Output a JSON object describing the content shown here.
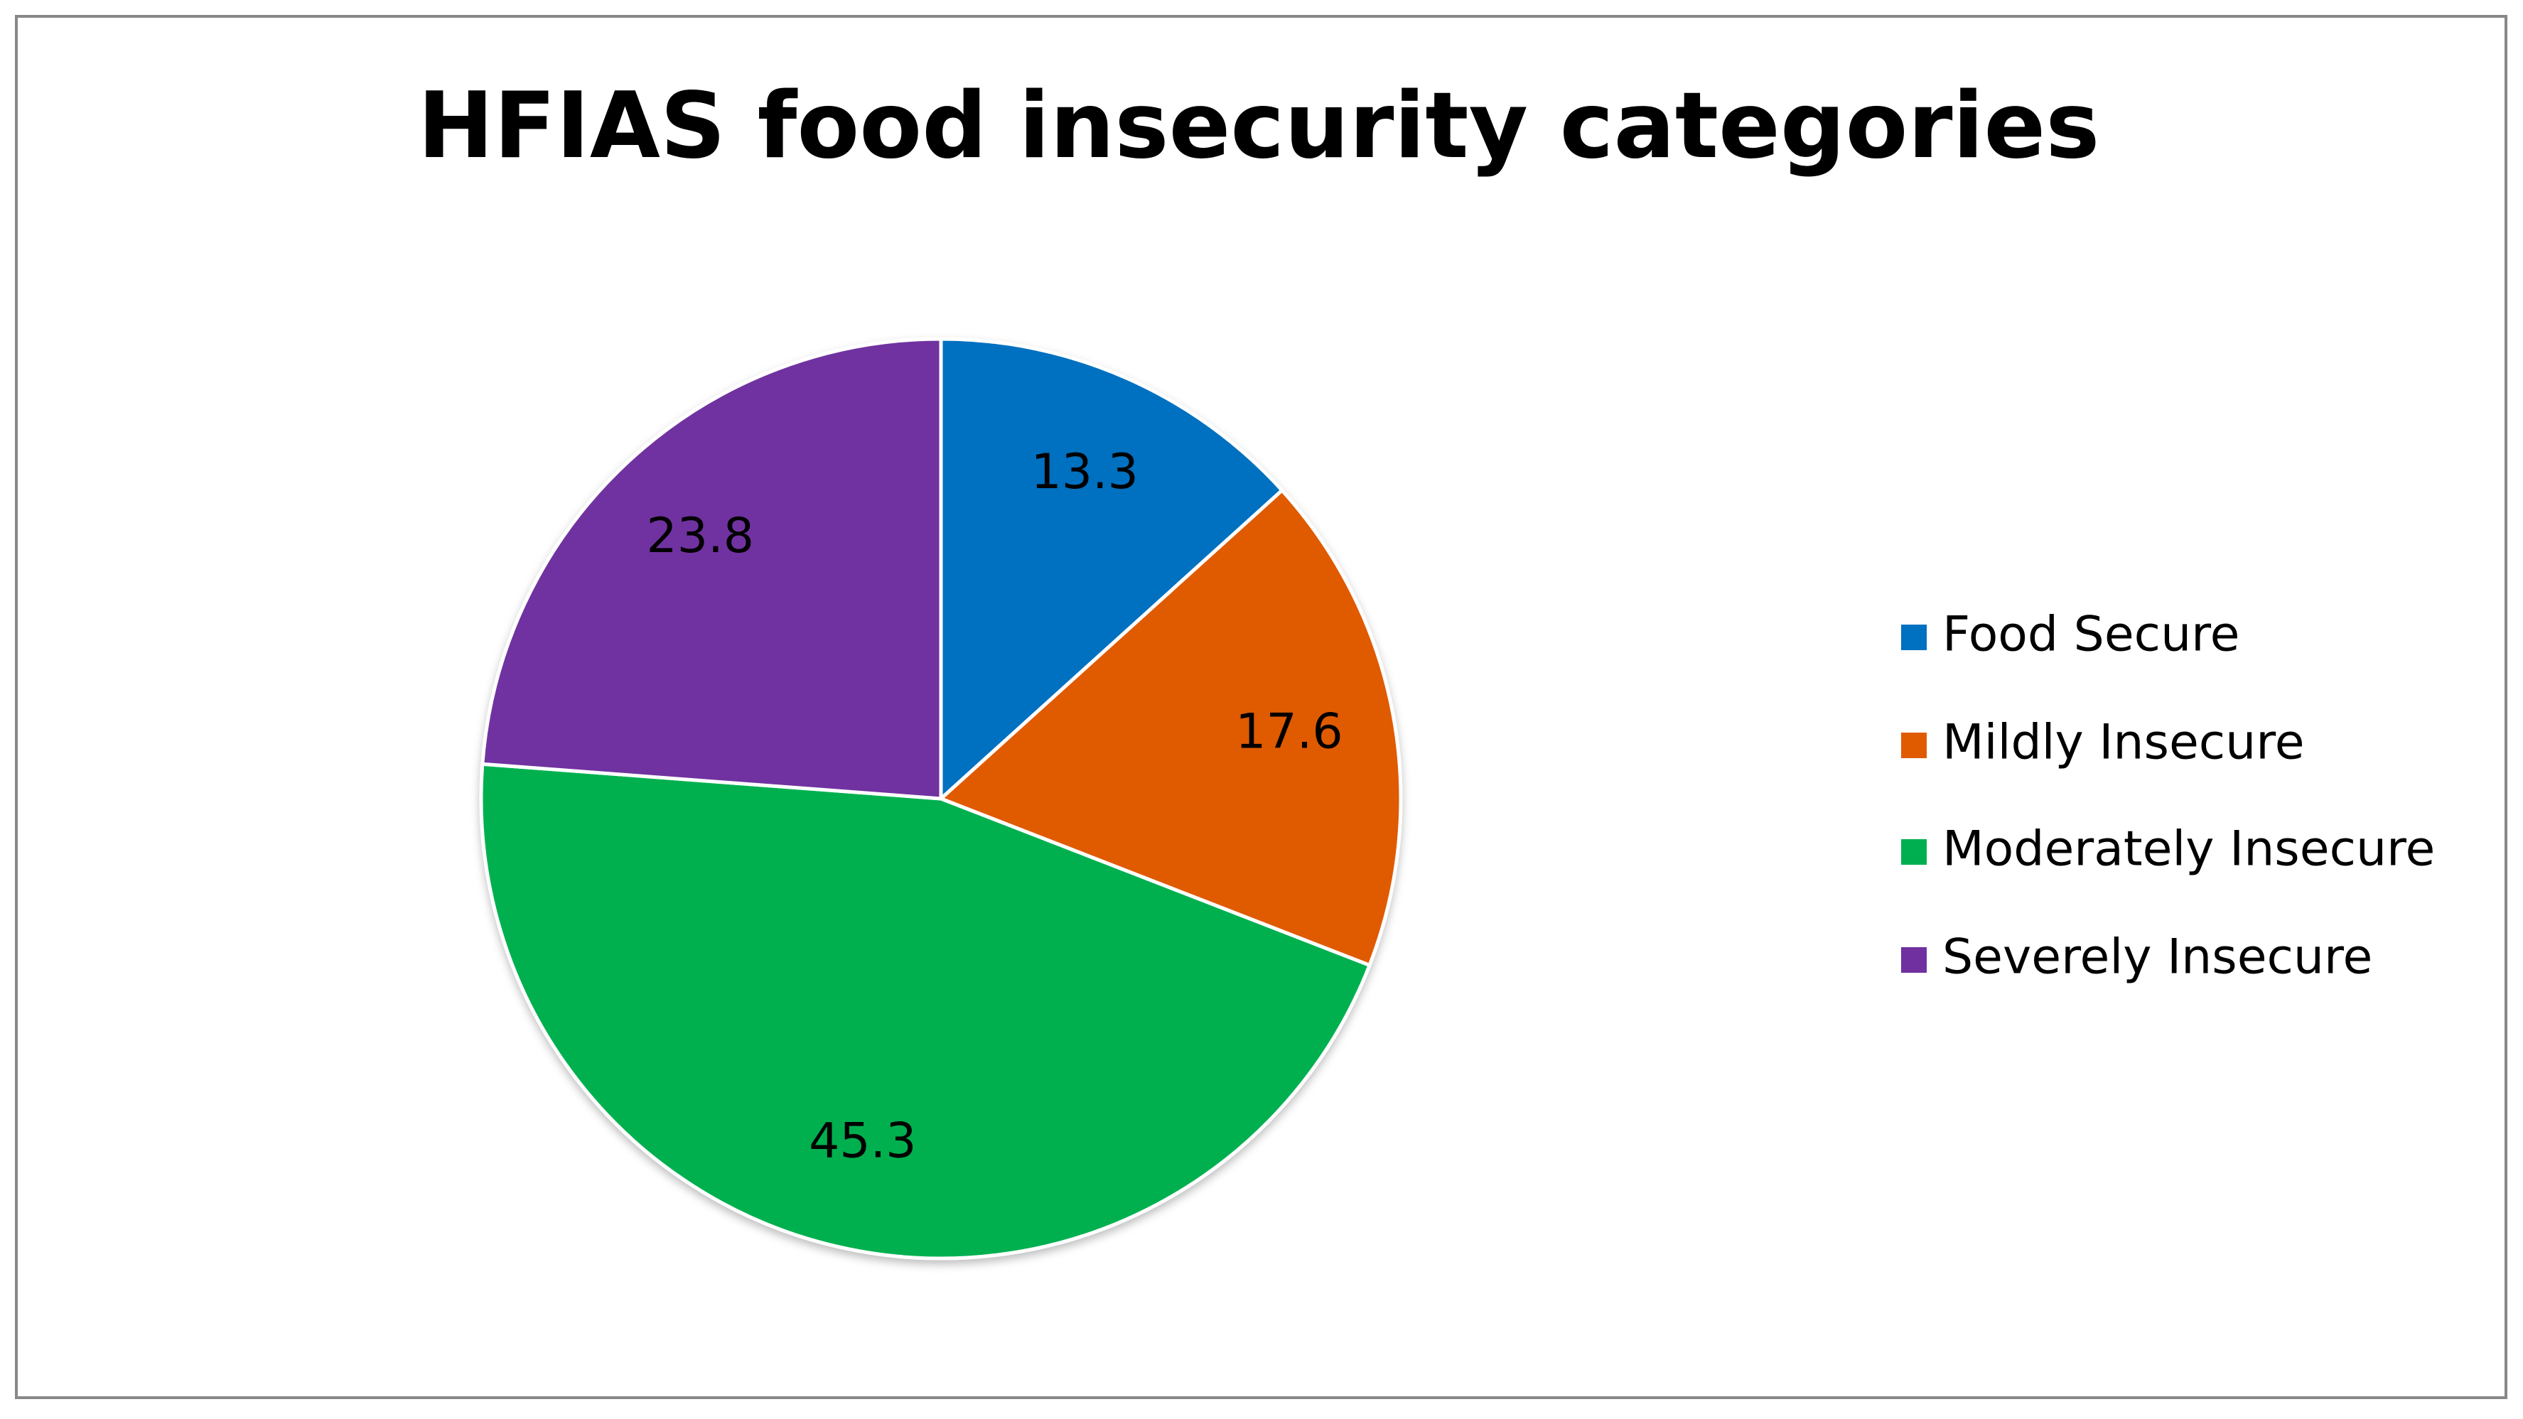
{
  "chart_data": {
    "type": "pie",
    "title": "HFIAS food insecurity categories",
    "categories": [
      "Food Secure",
      "Mildly Insecure",
      "Moderately Insecure",
      "Severely Insecure"
    ],
    "values": [
      13.3,
      17.6,
      45.3,
      23.8
    ],
    "colors": [
      "#0070c0",
      "#e05a00",
      "#00b050",
      "#7030a0"
    ],
    "legend": "right"
  }
}
